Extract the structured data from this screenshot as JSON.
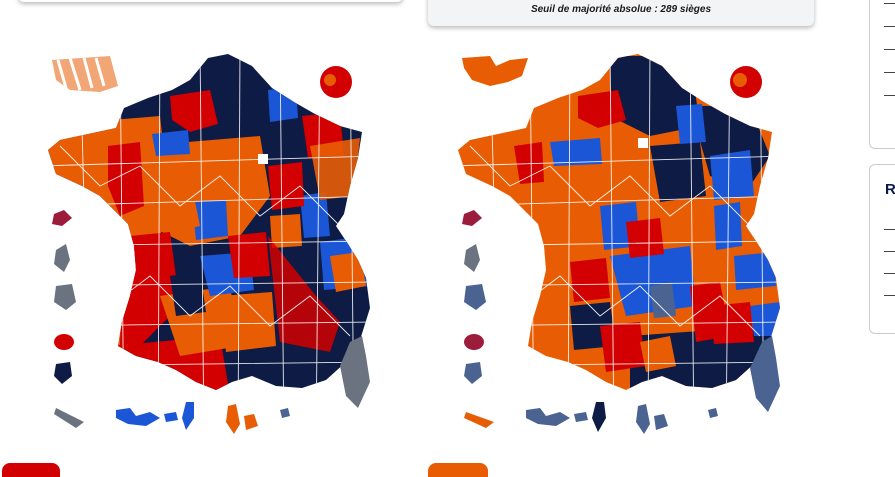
{
  "majority": {
    "label": "Seuil de majorité absolue : 289 sièges"
  },
  "sidebar": {
    "section_letter": "R"
  },
  "colors": {
    "far_right_navy": "#0d1b45",
    "centre_blue": "#1a56d6",
    "left_red": "#d20000",
    "orange": "#e85d04",
    "grey": "#6b7280",
    "grey_blue": "#4a6390",
    "maroon": "#9b1c3b"
  },
  "maps": [
    {
      "id": "left",
      "tab_color": "#d20000",
      "corsica": "#6b7280",
      "overseas": [
        "#9b1c3b",
        "#6b7280",
        "#6b7280",
        "#d20000",
        "#0d1b45"
      ]
    },
    {
      "id": "right",
      "tab_color": "#e85d04",
      "corsica": "#4a6390",
      "overseas": [
        "#9b1c3b",
        "#6b7280",
        "#4a6390",
        "#9b1c3b",
        "#4a6390"
      ]
    }
  ]
}
